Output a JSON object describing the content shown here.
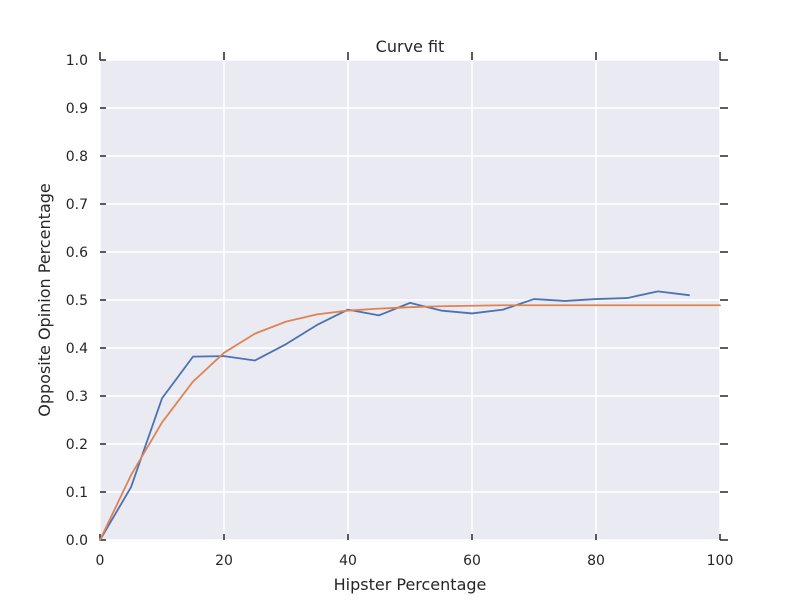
{
  "chart_data": {
    "type": "line",
    "title": "Curve fit",
    "xlabel": "Hipster Percentage",
    "ylabel": "Opposite Opinion Percentage",
    "xlim": [
      0,
      100
    ],
    "ylim": [
      0,
      1
    ],
    "xticks": [
      0,
      20,
      40,
      60,
      80,
      100
    ],
    "yticks": [
      0.0,
      0.1,
      0.2,
      0.3,
      0.4,
      0.5,
      0.6,
      0.7,
      0.8,
      0.9,
      1.0
    ],
    "xtick_labels": [
      "0",
      "20",
      "40",
      "60",
      "80",
      "100"
    ],
    "ytick_labels": [
      "0.0",
      "0.1",
      "0.2",
      "0.3",
      "0.4",
      "0.5",
      "0.6",
      "0.7",
      "0.8",
      "0.9",
      "1.0"
    ],
    "grid": true,
    "background_color": "#eaeaf2",
    "grid_color": "#ffffff",
    "series": [
      {
        "color": "#4c72b0",
        "x": [
          0,
          5,
          10,
          15,
          20,
          25,
          30,
          35,
          40,
          45,
          50,
          55,
          60,
          65,
          70,
          75,
          80,
          85,
          90,
          95
        ],
        "y": [
          0.0,
          0.11,
          0.295,
          0.382,
          0.383,
          0.374,
          0.408,
          0.448,
          0.48,
          0.468,
          0.494,
          0.478,
          0.472,
          0.48,
          0.502,
          0.498,
          0.502,
          0.504,
          0.518,
          0.51
        ]
      },
      {
        "color": "#dd8452",
        "x": [
          0,
          5,
          10,
          15,
          20,
          25,
          30,
          35,
          40,
          45,
          50,
          55,
          60,
          65,
          70,
          75,
          80,
          85,
          90,
          95,
          100
        ],
        "y": [
          0.0,
          0.135,
          0.245,
          0.33,
          0.39,
          0.43,
          0.455,
          0.47,
          0.478,
          0.482,
          0.485,
          0.487,
          0.488,
          0.489,
          0.489,
          0.489,
          0.489,
          0.489,
          0.489,
          0.489,
          0.489
        ]
      }
    ]
  }
}
